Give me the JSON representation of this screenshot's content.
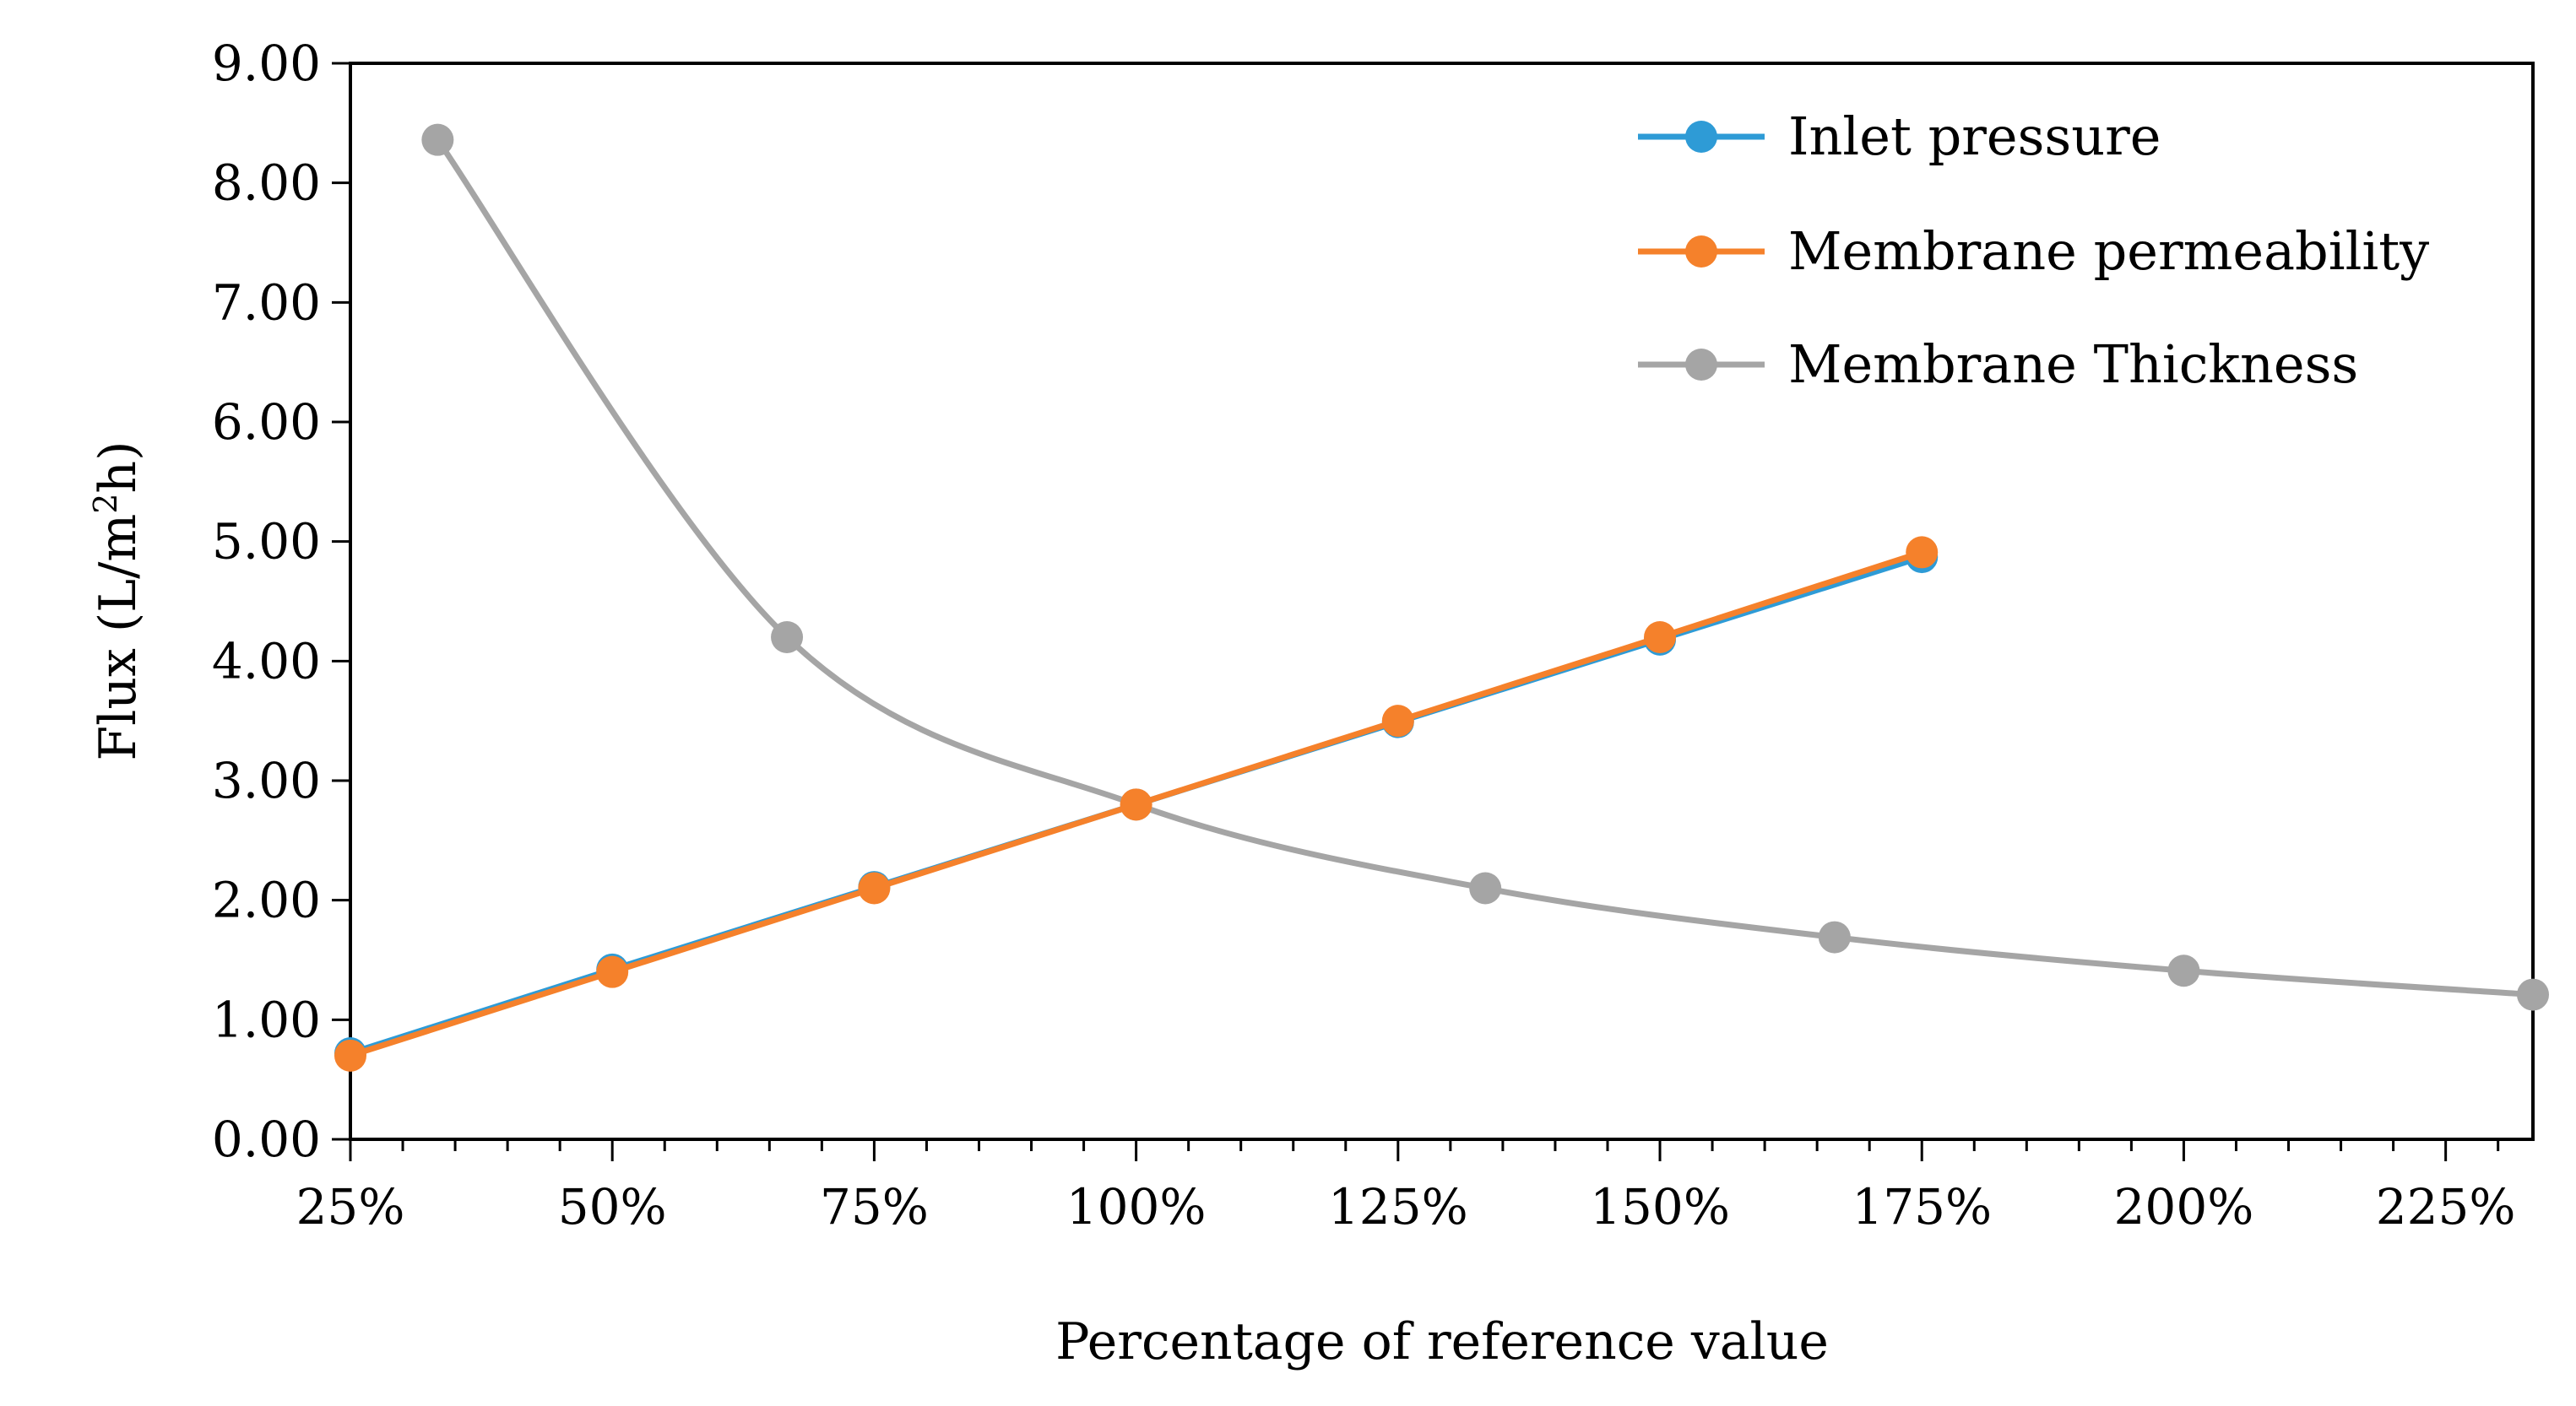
{
  "chart_data": {
    "type": "line",
    "title": "",
    "xlabel": "Percentage of reference value",
    "ylabel": "Flux (L/m²h)",
    "ylabel_parts": {
      "pre": "Flux (L/m",
      "sup": "2",
      "post": "h)"
    },
    "xlim": [
      25,
      233.33
    ],
    "ylim": [
      0,
      9
    ],
    "x_ticks": [
      25,
      50,
      75,
      100,
      125,
      150,
      175,
      200,
      225
    ],
    "x_tick_labels": [
      "25%",
      "50%",
      "75%",
      "100%",
      "125%",
      "150%",
      "175%",
      "200%",
      "225%"
    ],
    "x_minor_step": 5,
    "y_ticks": [
      0,
      1,
      2,
      3,
      4,
      5,
      6,
      7,
      8,
      9
    ],
    "y_tick_labels": [
      "0.00",
      "1.00",
      "2.00",
      "3.00",
      "4.00",
      "5.00",
      "6.00",
      "7.00",
      "8.00",
      "9.00"
    ],
    "legend_position": "top-right",
    "grid": false,
    "series": [
      {
        "name": "Inlet pressure",
        "color": "#2E9BD6",
        "smooth": false,
        "x": [
          25,
          50,
          75,
          125,
          150,
          175
        ],
        "y": [
          0.72,
          1.42,
          2.11,
          3.49,
          4.18,
          4.87
        ]
      },
      {
        "name": "Membrane permeability",
        "color": "#F5812B",
        "smooth": false,
        "x": [
          25,
          50,
          75,
          100,
          125,
          150,
          175
        ],
        "y": [
          0.7,
          1.4,
          2.1,
          2.8,
          3.5,
          4.2,
          4.91
        ]
      },
      {
        "name": "Membrane Thickness",
        "color": "#A5A5A5",
        "smooth": true,
        "x": [
          33.33,
          66.67,
          100,
          133.33,
          166.67,
          200,
          233.33
        ],
        "y": [
          8.36,
          4.2,
          2.8,
          2.1,
          1.69,
          1.41,
          1.21
        ]
      }
    ]
  }
}
